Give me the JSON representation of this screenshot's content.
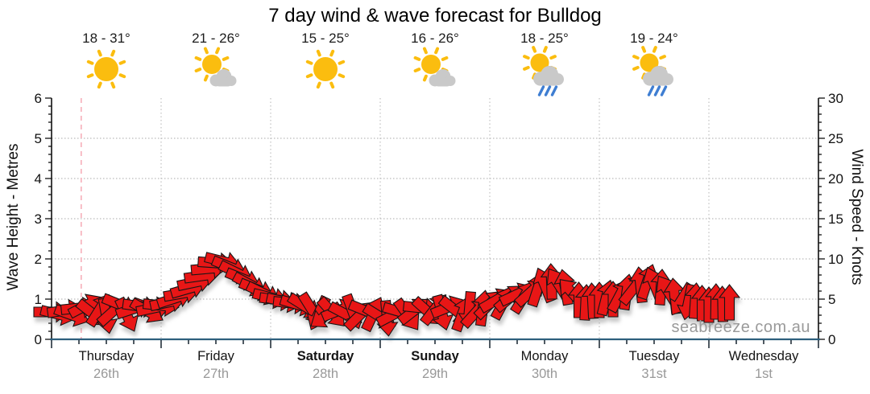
{
  "chart": {
    "title": "7 day wind & wave forecast for Bulldog",
    "watermark": "seabreeze.com.au",
    "left_axis_title": "Wave Height - Metres",
    "right_axis_title": "Wind Speed - Knots"
  },
  "days": [
    {
      "name": "Thursday",
      "date": "26th",
      "temp": "18 - 31°",
      "icon": "sunny",
      "bold": false
    },
    {
      "name": "Friday",
      "date": "27th",
      "temp": "21 - 26°",
      "icon": "partly-cloudy",
      "bold": false
    },
    {
      "name": "Saturday",
      "date": "28th",
      "temp": "15 - 25°",
      "icon": "sunny",
      "bold": true
    },
    {
      "name": "Sunday",
      "date": "29th",
      "temp": "16 - 26°",
      "icon": "partly-cloudy",
      "bold": true
    },
    {
      "name": "Monday",
      "date": "30th",
      "temp": "18 - 25°",
      "icon": "showers",
      "bold": false
    },
    {
      "name": "Tuesday",
      "date": "31st",
      "temp": "19 - 24°",
      "icon": "showers",
      "bold": false
    },
    {
      "name": "Wednesday",
      "date": "1st",
      "bold": false
    }
  ],
  "chart_data": {
    "type": "wind-arrow-series",
    "title": "7 day wind & wave forecast for Bulldog",
    "x_unit": "hours from Thursday 00:00",
    "x_range_hours": [
      0,
      168
    ],
    "left_axis": {
      "label": "Wave Height - Metres",
      "min": 0,
      "max": 6,
      "major_step": 1,
      "minor_step": 0.2
    },
    "right_axis": {
      "label": "Wind Speed - Knots",
      "min": 0,
      "max": 30,
      "major_step": 5,
      "minor_step": 1
    },
    "x_major_tick_hours": 24,
    "x_minor_tick_hours": 6,
    "grid": "dotted horizontal at 1-5 m, dotted vertical at day boundaries",
    "now_marker_hour": 6.5,
    "arrow_note": "each point = [hour, wind_speed_knots, direction_deg (0=east/right, -90=north/up)]",
    "arrows": [
      [
        0,
        3.4,
        0
      ],
      [
        1.5,
        3.1,
        14
      ],
      [
        3,
        3.6,
        -8
      ],
      [
        4.5,
        3.0,
        20
      ],
      [
        6,
        3.9,
        -6
      ],
      [
        7.5,
        4.2,
        -28
      ],
      [
        9,
        3.2,
        38
      ],
      [
        10.5,
        3.7,
        -58
      ],
      [
        12,
        2.9,
        80
      ],
      [
        13.5,
        3.5,
        -42
      ],
      [
        15,
        4.3,
        22
      ],
      [
        16.5,
        3.0,
        65
      ],
      [
        18,
        3.8,
        -18
      ],
      [
        19.5,
        4.1,
        8
      ],
      [
        21,
        3.5,
        30
      ],
      [
        22.5,
        3.9,
        -12
      ],
      [
        24,
        4.2,
        6
      ],
      [
        25.5,
        4.6,
        -12
      ],
      [
        27,
        5.1,
        -18
      ],
      [
        28.5,
        5.7,
        -10
      ],
      [
        30,
        6.3,
        -16
      ],
      [
        31.5,
        7.1,
        -12
      ],
      [
        33,
        7.9,
        -8
      ],
      [
        34.5,
        8.8,
        -5
      ],
      [
        36,
        9.5,
        4
      ],
      [
        37.5,
        9.7,
        14
      ],
      [
        39,
        9.0,
        22
      ],
      [
        40.5,
        8.3,
        26
      ],
      [
        42,
        7.5,
        22
      ],
      [
        43.5,
        6.8,
        28
      ],
      [
        45,
        6.2,
        22
      ],
      [
        46.5,
        5.7,
        26
      ],
      [
        48,
        5.2,
        14
      ],
      [
        49.5,
        4.9,
        8
      ],
      [
        51,
        4.7,
        12
      ],
      [
        52.5,
        4.5,
        6
      ],
      [
        54,
        4.3,
        16
      ],
      [
        55.5,
        4.1,
        32
      ],
      [
        57,
        3.7,
        58
      ],
      [
        58.5,
        3.2,
        115
      ],
      [
        60,
        2.9,
        145
      ],
      [
        61.5,
        3.3,
        48
      ],
      [
        63,
        3.6,
        -22
      ],
      [
        64.5,
        3.1,
        28
      ],
      [
        66,
        3.4,
        70
      ],
      [
        67.5,
        3.0,
        -45
      ],
      [
        69,
        3.5,
        22
      ],
      [
        70.5,
        3.2,
        -65
      ],
      [
        72,
        2.8,
        32
      ],
      [
        73.5,
        2.6,
        85
      ],
      [
        75,
        3.1,
        -28
      ],
      [
        76.5,
        3.4,
        16
      ],
      [
        78,
        3.0,
        55
      ],
      [
        79.5,
        3.6,
        -38
      ],
      [
        81,
        3.9,
        6
      ],
      [
        82.5,
        3.4,
        42
      ],
      [
        84,
        3.8,
        -52
      ],
      [
        85.5,
        3.3,
        75
      ],
      [
        87,
        4.0,
        -22
      ],
      [
        88.5,
        3.6,
        38
      ],
      [
        90,
        3.2,
        -70
      ],
      [
        91.5,
        3.7,
        95
      ],
      [
        93,
        3.4,
        -48
      ],
      [
        94.5,
        3.9,
        -82
      ],
      [
        96,
        4.4,
        -45
      ],
      [
        97.5,
        4.9,
        -30
      ],
      [
        99,
        4.6,
        -62
      ],
      [
        100.5,
        5.2,
        -40
      ],
      [
        102,
        5.6,
        -25
      ],
      [
        103.5,
        5.3,
        -58
      ],
      [
        105,
        5.9,
        -42
      ],
      [
        106.5,
        6.3,
        -72
      ],
      [
        108,
        6.8,
        -112
      ],
      [
        109.5,
        7.2,
        -92
      ],
      [
        111,
        6.9,
        -122
      ],
      [
        112.5,
        6.5,
        -100
      ],
      [
        114,
        5.8,
        -132
      ],
      [
        115.5,
        4.9,
        -90
      ],
      [
        117,
        4.6,
        -87
      ],
      [
        118.5,
        4.8,
        -93
      ],
      [
        120,
        4.9,
        -90
      ],
      [
        121.5,
        5.2,
        -76
      ],
      [
        123,
        5.0,
        -90
      ],
      [
        124.5,
        5.5,
        -62
      ],
      [
        126,
        5.9,
        -82
      ],
      [
        127.5,
        6.3,
        -52
      ],
      [
        129,
        6.8,
        -96
      ],
      [
        130.5,
        7.2,
        -72
      ],
      [
        132,
        6.9,
        -112
      ],
      [
        133.5,
        6.5,
        -86
      ],
      [
        135,
        6.0,
        -122
      ],
      [
        136.5,
        5.4,
        -96
      ],
      [
        138,
        4.9,
        122
      ],
      [
        139.5,
        4.6,
        102
      ],
      [
        141,
        4.8,
        -86
      ],
      [
        142.5,
        4.5,
        -90
      ],
      [
        144,
        4.3,
        -90
      ],
      [
        145.5,
        4.7,
        -89
      ],
      [
        147,
        4.4,
        -91
      ],
      [
        148.5,
        4.6,
        -90
      ]
    ]
  },
  "colors": {
    "arrow_fill": "#e81212",
    "arrow_outline": "#151515",
    "baseline_blue": "#2e5f7d",
    "axis_black": "#111111",
    "grid_gray": "#aaaaaa",
    "day_boundary_gray": "#b4b4b4",
    "now_line_pink": "#f6a9b4",
    "date_gray": "#999999",
    "watermark_gray": "#9a9a9a",
    "sun_gold": "#fbbd0f",
    "cloud_gray": "#c9c9c9",
    "rain_blue": "#3f7ed2"
  }
}
